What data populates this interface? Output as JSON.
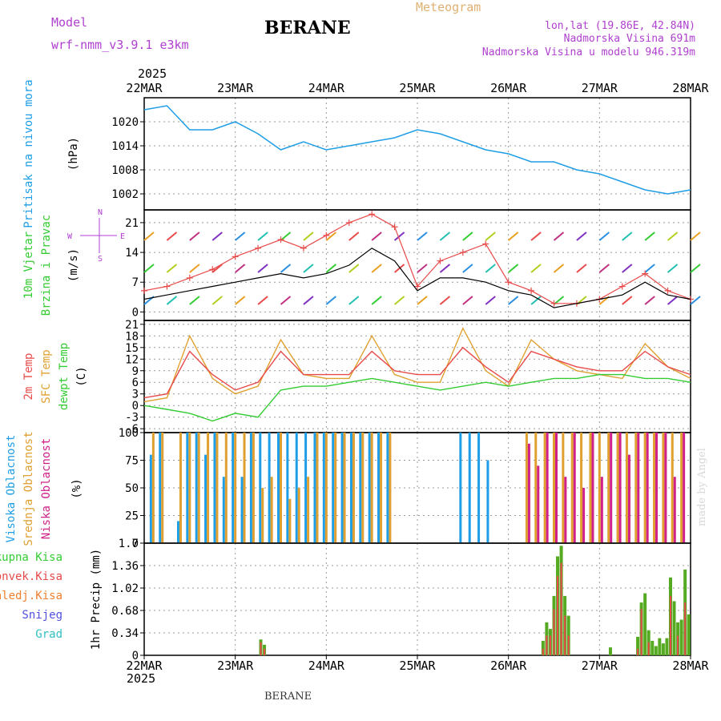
{
  "header": {
    "model_label": "Model",
    "model_name": "wrf-nmm_v3.9.1 e3km",
    "station": "BERANE",
    "title": "Meteogram",
    "lonlat": "lon,lat (19.86E, 42.84N)",
    "altitude": "Nadmorska Visina 691m",
    "model_altitude": "Nadmorska Visina u modelu 946.319m",
    "year": "2025",
    "footer": "BERANE",
    "credit": "made by Angel"
  },
  "colors": {
    "pressure": "#1e9ee6",
    "wind_speed": "#000000",
    "wind_gust": "#e84a4a",
    "temp2m": "#e84a4a",
    "sfc_temp": "#e0a030",
    "dewpt": "#33cc33",
    "cloud_high": "#1e9ee6",
    "cloud_mid": "#e0a030",
    "cloud_low": "#d0208a",
    "precip_total": "#55aa22",
    "precip_conv": "#e84a4a",
    "axis_label_green": "#33cc33",
    "axis_label_purple": "#b040d0"
  },
  "chart_data": [
    {
      "type": "line",
      "panel": "pressure",
      "ylabel_name": "Pritisak na nivou mora",
      "unit": "(hPa)",
      "ylim": [
        998,
        1026
      ],
      "yticks": [
        1002,
        1008,
        1014,
        1020
      ],
      "x": [
        0,
        0.25,
        0.5,
        0.75,
        1,
        1.25,
        1.5,
        1.75,
        2,
        2.25,
        2.5,
        2.75,
        3,
        3.25,
        3.5,
        3.75,
        4,
        4.25,
        4.5,
        4.75,
        5,
        5.25,
        5.5,
        5.75,
        6
      ],
      "values": [
        1023,
        1024,
        1018,
        1018,
        1020,
        1017,
        1013,
        1015,
        1013,
        1014,
        1015,
        1016,
        1018,
        1017,
        1015,
        1013,
        1012,
        1010,
        1010,
        1008,
        1007,
        1005,
        1003,
        1002,
        1003
      ]
    },
    {
      "type": "line",
      "panel": "wind",
      "ylabel_name": "10m Vjetar",
      "ylabel_name2": "Brzina i Pravac",
      "unit": "(m/s)",
      "compass": "N",
      "compass_w": "W",
      "compass_e": "E",
      "compass_s": "S",
      "ylim": [
        -2,
        24
      ],
      "yticks": [
        0,
        7,
        14,
        21
      ],
      "x": [
        0,
        0.25,
        0.5,
        0.75,
        1,
        1.25,
        1.5,
        1.75,
        2,
        2.25,
        2.5,
        2.75,
        3,
        3.25,
        3.5,
        3.75,
        4,
        4.25,
        4.5,
        4.75,
        5,
        5.25,
        5.5,
        5.75,
        6
      ],
      "series": [
        {
          "name": "speed",
          "values": [
            3,
            4,
            5,
            6,
            7,
            8,
            9,
            8,
            9,
            11,
            15,
            12,
            5,
            8,
            8,
            7,
            5,
            4,
            1,
            2,
            3,
            4,
            7,
            4,
            3
          ]
        },
        {
          "name": "gust",
          "values": [
            5,
            6,
            8,
            10,
            13,
            15,
            17,
            15,
            18,
            21,
            23,
            20,
            6,
            12,
            14,
            16,
            7,
            5,
            2,
            2,
            3,
            6,
            9,
            5,
            3
          ]
        }
      ]
    },
    {
      "type": "line",
      "panel": "temperature",
      "ylabel_names": [
        "2m Temp",
        "SFC Temp",
        "dewpt Temp"
      ],
      "unit": "(C)",
      "ylim": [
        -7,
        22
      ],
      "yticks": [
        -6,
        -3,
        0,
        3,
        6,
        9,
        12,
        15,
        18,
        21
      ],
      "x": [
        0,
        0.25,
        0.5,
        0.75,
        1,
        1.25,
        1.5,
        1.75,
        2,
        2.25,
        2.5,
        2.75,
        3,
        3.25,
        3.5,
        3.75,
        4,
        4.25,
        4.5,
        4.75,
        5,
        5.25,
        5.5,
        5.75,
        6
      ],
      "series": [
        {
          "name": "2m Temp",
          "values": [
            2,
            3,
            14,
            8,
            4,
            6,
            14,
            8,
            8,
            8,
            14,
            9,
            8,
            8,
            15,
            10,
            6,
            14,
            12,
            10,
            9,
            9,
            14,
            10,
            8
          ]
        },
        {
          "name": "SFC Temp",
          "values": [
            1,
            2,
            18,
            7,
            3,
            5,
            17,
            8,
            7,
            7,
            18,
            8,
            6,
            6,
            20,
            9,
            5,
            17,
            12,
            9,
            8,
            7,
            16,
            10,
            7
          ]
        },
        {
          "name": "dewpt Temp",
          "values": [
            0,
            -1,
            -2,
            -4,
            -2,
            -3,
            4,
            5,
            5,
            6,
            7,
            6,
            5,
            4,
            5,
            6,
            5,
            6,
            7,
            7,
            8,
            8,
            7,
            7,
            6
          ]
        }
      ]
    },
    {
      "type": "bar",
      "panel": "clouds",
      "ylabel_names": [
        "Visoka Oblacnost",
        "Srednja Oblacnost",
        "Niska Oblacnost"
      ],
      "unit": "(%)",
      "ylim": [
        0,
        100
      ],
      "yticks": [
        0,
        25,
        50,
        75,
        100
      ],
      "x": [
        0.1,
        0.2,
        0.4,
        0.5,
        0.6,
        0.7,
        0.8,
        0.9,
        1.0,
        1.1,
        1.2,
        1.3,
        1.4,
        1.5,
        1.6,
        1.7,
        1.8,
        1.9,
        2.0,
        2.1,
        2.2,
        2.3,
        2.4,
        2.5,
        2.6,
        2.7,
        3.5,
        3.6,
        3.7,
        3.8,
        4.2,
        4.3,
        4.4,
        4.5,
        4.6,
        4.7,
        4.8,
        4.9,
        5.0,
        5.1,
        5.2,
        5.3,
        5.4,
        5.5,
        5.6,
        5.7,
        5.8,
        5.9
      ],
      "series": [
        {
          "name": "high",
          "values": [
            80,
            100,
            20,
            100,
            100,
            80,
            100,
            60,
            100,
            60,
            100,
            100,
            100,
            100,
            100,
            100,
            100,
            100,
            100,
            100,
            100,
            100,
            100,
            100,
            100,
            100,
            100,
            100,
            100,
            75,
            0,
            0,
            0,
            0,
            0,
            0,
            0,
            0,
            0,
            0,
            0,
            0,
            0,
            0,
            0,
            0,
            0,
            0
          ]
        },
        {
          "name": "mid",
          "values": [
            100,
            100,
            100,
            100,
            100,
            100,
            100,
            100,
            100,
            100,
            100,
            50,
            60,
            100,
            40,
            50,
            60,
            100,
            100,
            100,
            100,
            100,
            100,
            100,
            100,
            100,
            0,
            0,
            0,
            0,
            100,
            100,
            100,
            100,
            100,
            100,
            100,
            100,
            100,
            100,
            100,
            100,
            100,
            100,
            100,
            100,
            100,
            100
          ]
        },
        {
          "name": "low",
          "values": [
            0,
            0,
            0,
            0,
            0,
            0,
            0,
            0,
            0,
            0,
            0,
            0,
            0,
            0,
            0,
            0,
            0,
            0,
            0,
            0,
            0,
            0,
            0,
            0,
            0,
            0,
            0,
            0,
            0,
            0,
            90,
            70,
            100,
            100,
            60,
            100,
            50,
            100,
            60,
            100,
            100,
            80,
            100,
            100,
            100,
            100,
            60,
            100
          ]
        }
      ]
    },
    {
      "type": "bar",
      "panel": "precip",
      "ylabel_names": [
        "Ukupna Kisa",
        "Konvek.Kisa",
        "Zaledj.Kisa",
        "Snijeg",
        "Grad"
      ],
      "ylabel_colors": [
        "#33cc33",
        "#e84a4a",
        "#f08030",
        "#5050e0",
        "#30c0c0"
      ],
      "unit": "1hr Precip (mm)",
      "ylim": [
        0,
        1.7
      ],
      "yticks": [
        0,
        0.34,
        0.68,
        1.02,
        1.36,
        1.7
      ],
      "x": [
        1.28,
        1.32,
        4.38,
        4.42,
        4.46,
        4.5,
        4.54,
        4.58,
        4.62,
        4.66,
        5.12,
        5.42,
        5.46,
        5.5,
        5.54,
        5.58,
        5.62,
        5.66,
        5.7,
        5.74,
        5.78,
        5.82,
        5.86,
        5.9,
        5.94,
        5.98
      ],
      "series": [
        {
          "name": "total",
          "values": [
            0.24,
            0.16,
            0.22,
            0.5,
            0.4,
            0.9,
            1.5,
            1.66,
            0.9,
            0.6,
            0.12,
            0.28,
            0.8,
            0.94,
            0.38,
            0.22,
            0.14,
            0.26,
            0.18,
            0.26,
            1.18,
            0.82,
            0.5,
            0.54,
            1.3,
            0.62
          ]
        },
        {
          "name": "convective",
          "values": [
            0.2,
            0.1,
            0.1,
            0.3,
            0.3,
            0.7,
            1.2,
            1.4,
            0.6,
            0.3,
            0.0,
            0.1,
            0.7,
            0.0,
            0.2,
            0.0,
            0.0,
            0.0,
            0.0,
            0.0,
            0.9,
            0.0,
            0.3,
            0.0,
            0.8,
            0.0
          ]
        }
      ]
    }
  ],
  "xaxis": {
    "labels": [
      "22MAR",
      "23MAR",
      "24MAR",
      "25MAR",
      "26MAR",
      "27MAR",
      "28MAR"
    ]
  }
}
